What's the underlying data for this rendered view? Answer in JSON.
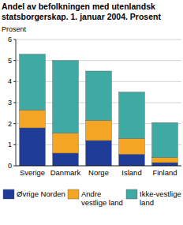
{
  "chart_data": {
    "type": "bar",
    "stacked": true,
    "grid": true,
    "legend": "bottom",
    "title": "Andel av befolkningen med utenlandsk statsborgerskap. 1. januar 2004. Prosent",
    "y_label": "Prosent",
    "categories": [
      "Sverige",
      "Danmark",
      "Norge",
      "Island",
      "Finland"
    ],
    "series": [
      {
        "name": "Øvrige Norden",
        "color": "#1f3c99",
        "values": [
          1.8,
          0.6,
          1.2,
          0.55,
          0.15
        ]
      },
      {
        "name": "Andre vestlige land",
        "color": "#f5a524",
        "values": [
          0.85,
          0.95,
          0.95,
          0.75,
          0.25
        ]
      },
      {
        "name": "Ikke-vestlige land",
        "color": "#3fa9a4",
        "values": [
          2.65,
          3.45,
          2.35,
          2.2,
          1.65
        ]
      }
    ],
    "ylim": [
      0,
      6
    ],
    "yticks": [
      0,
      1,
      2,
      3,
      4,
      5,
      6
    ]
  }
}
